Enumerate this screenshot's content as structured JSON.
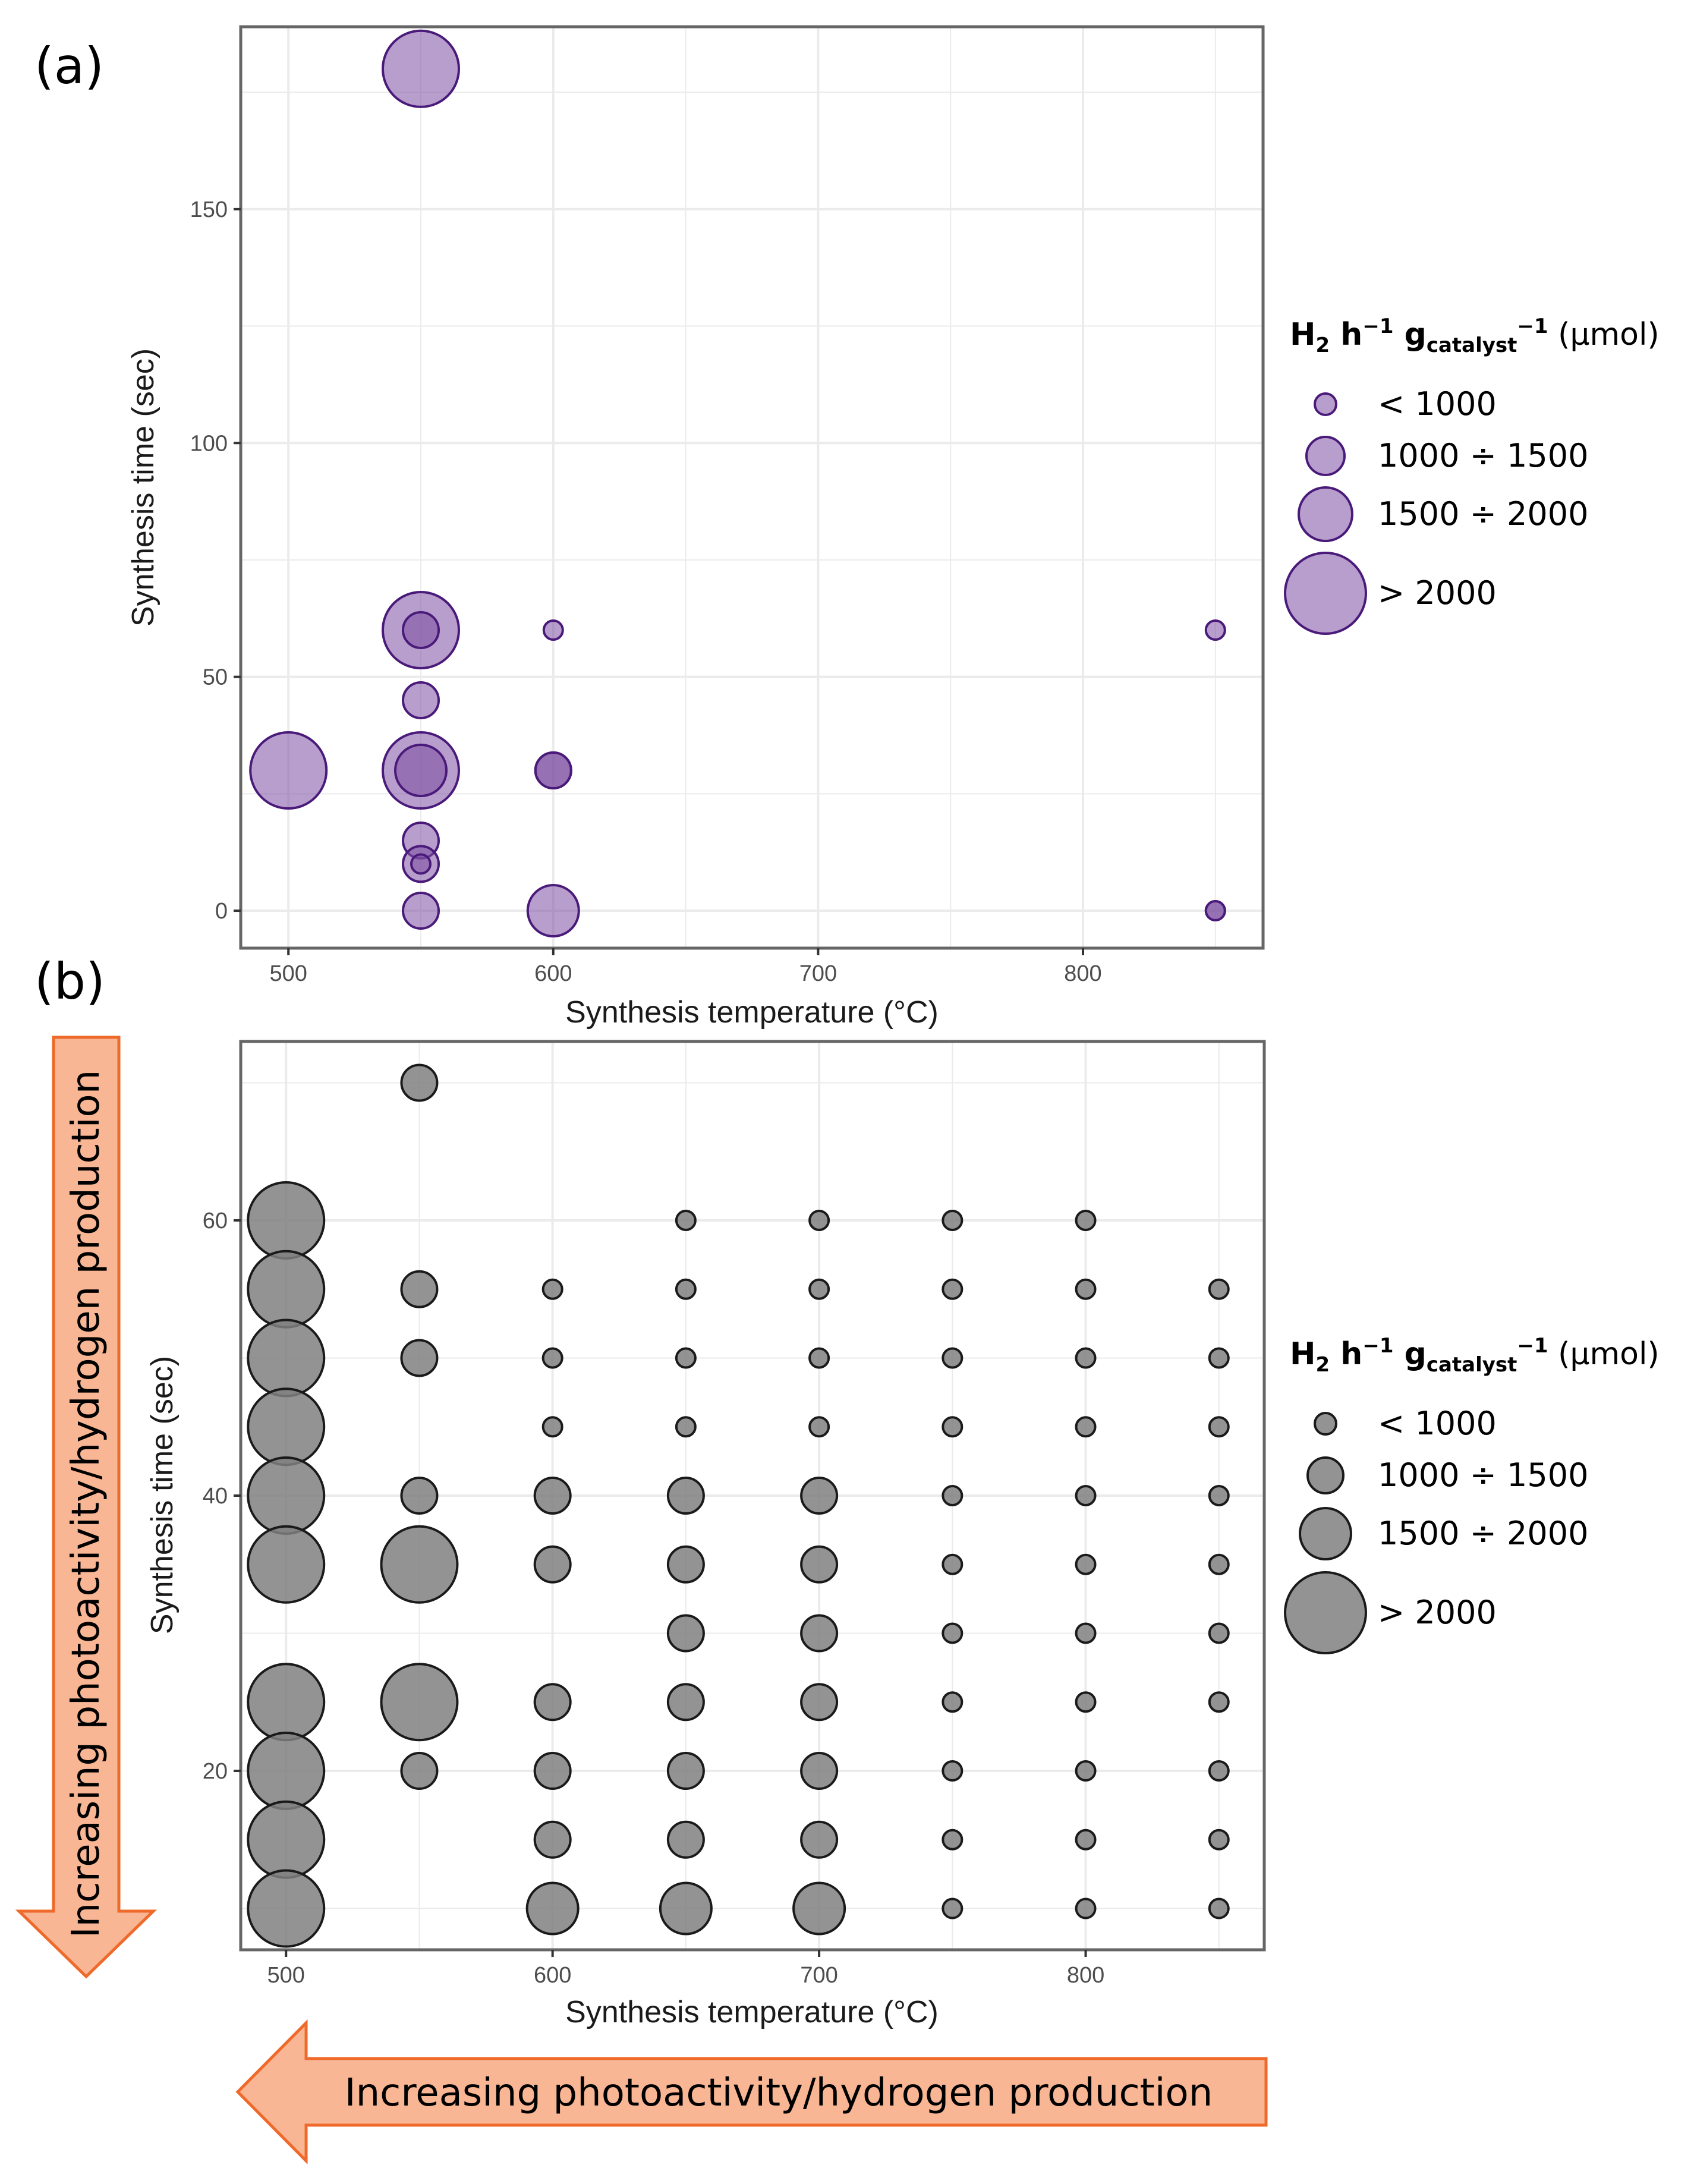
{
  "panels": {
    "a": {
      "label": "(a)"
    },
    "b": {
      "label": "(b)"
    }
  },
  "legend": {
    "title_main": "H",
    "title_sub": "2",
    "title_h": " h",
    "title_sup1": "−1",
    "title_g": " g",
    "title_cat": "catalyst",
    "title_sup2": "−1",
    "title_unit": " (μmol)",
    "items": [
      "< 1000",
      "1000 ÷ 1500",
      "1500 ÷ 2000",
      "> 2000"
    ]
  },
  "arrows": {
    "vertical": "Increasing photoactivity/hydrogen production",
    "horizontal": "Increasing photoactivity/hydrogen production"
  },
  "colors": {
    "purple_fill": "#7b4fa3",
    "purple_stroke": "#4a1a7a",
    "gray_fill": "#808080",
    "gray_stroke": "#1a1a1a",
    "arrow_fill": "#f8b694",
    "arrow_stroke": "#ef6a2a",
    "grid": "#ebebeb",
    "panel_border": "#666666"
  },
  "chart_data": [
    {
      "type": "scatter",
      "subtype": "bubble",
      "panel": "a",
      "title": "",
      "xlabel": "Synthesis temperature (°C)",
      "ylabel": "Synthesis time (sec)",
      "xlim": [
        482,
        868
      ],
      "ylim": [
        -8,
        189
      ],
      "xticks": [
        500,
        600,
        700,
        800
      ],
      "yticks": [
        0,
        50,
        100,
        150
      ],
      "grid": true,
      "legend_position": "right",
      "size_classes": [
        "< 1000",
        "1000 ÷ 1500",
        "1500 ÷ 2000",
        "> 2000"
      ],
      "points": [
        {
          "x": 550,
          "y": 180,
          "size_class": 3
        },
        {
          "x": 550,
          "y": 60,
          "size_class": 3
        },
        {
          "x": 550,
          "y": 60,
          "size_class": 1
        },
        {
          "x": 600,
          "y": 60,
          "size_class": 0
        },
        {
          "x": 850,
          "y": 60,
          "size_class": 0
        },
        {
          "x": 550,
          "y": 45,
          "size_class": 1
        },
        {
          "x": 500,
          "y": 30,
          "size_class": 3
        },
        {
          "x": 550,
          "y": 30,
          "size_class": 3
        },
        {
          "x": 550,
          "y": 30,
          "size_class": 2
        },
        {
          "x": 600,
          "y": 30,
          "size_class": 1
        },
        {
          "x": 600,
          "y": 30,
          "size_class": 1
        },
        {
          "x": 550,
          "y": 15,
          "size_class": 1
        },
        {
          "x": 550,
          "y": 10,
          "size_class": 1
        },
        {
          "x": 550,
          "y": 10,
          "size_class": 0
        },
        {
          "x": 550,
          "y": 0,
          "size_class": 1
        },
        {
          "x": 600,
          "y": 0,
          "size_class": 2
        },
        {
          "x": 850,
          "y": 0,
          "size_class": 0
        },
        {
          "x": 850,
          "y": 0,
          "size_class": 0
        }
      ]
    },
    {
      "type": "scatter",
      "subtype": "bubble",
      "panel": "b",
      "title": "",
      "xlabel": "Synthesis temperature (°C)",
      "ylabel": "Synthesis time (sec)",
      "xlim": [
        483,
        867
      ],
      "ylim": [
        7,
        73
      ],
      "xticks": [
        500,
        600,
        700,
        800
      ],
      "yticks": [
        20,
        40,
        60
      ],
      "grid": true,
      "legend_position": "right",
      "size_classes": [
        "< 1000",
        "1000 ÷ 1500",
        "1500 ÷ 2000",
        "> 2000"
      ],
      "points": [
        {
          "x": 500,
          "y": 60,
          "size_class": 3
        },
        {
          "x": 500,
          "y": 55,
          "size_class": 3
        },
        {
          "x": 500,
          "y": 50,
          "size_class": 3
        },
        {
          "x": 500,
          "y": 45,
          "size_class": 3
        },
        {
          "x": 500,
          "y": 40,
          "size_class": 3
        },
        {
          "x": 500,
          "y": 35,
          "size_class": 3
        },
        {
          "x": 500,
          "y": 25,
          "size_class": 3
        },
        {
          "x": 500,
          "y": 20,
          "size_class": 3
        },
        {
          "x": 500,
          "y": 15,
          "size_class": 3
        },
        {
          "x": 500,
          "y": 10,
          "size_class": 3
        },
        {
          "x": 550,
          "y": 70,
          "size_class": 1
        },
        {
          "x": 550,
          "y": 55,
          "size_class": 1
        },
        {
          "x": 550,
          "y": 50,
          "size_class": 1
        },
        {
          "x": 550,
          "y": 40,
          "size_class": 1
        },
        {
          "x": 550,
          "y": 35,
          "size_class": 3
        },
        {
          "x": 550,
          "y": 25,
          "size_class": 3
        },
        {
          "x": 550,
          "y": 20,
          "size_class": 1
        },
        {
          "x": 600,
          "y": 55,
          "size_class": 0
        },
        {
          "x": 600,
          "y": 50,
          "size_class": 0
        },
        {
          "x": 600,
          "y": 45,
          "size_class": 0
        },
        {
          "x": 600,
          "y": 40,
          "size_class": 1
        },
        {
          "x": 600,
          "y": 35,
          "size_class": 1
        },
        {
          "x": 600,
          "y": 25,
          "size_class": 1
        },
        {
          "x": 600,
          "y": 20,
          "size_class": 1
        },
        {
          "x": 600,
          "y": 15,
          "size_class": 1
        },
        {
          "x": 600,
          "y": 10,
          "size_class": 2
        },
        {
          "x": 650,
          "y": 60,
          "size_class": 0
        },
        {
          "x": 650,
          "y": 55,
          "size_class": 0
        },
        {
          "x": 650,
          "y": 50,
          "size_class": 0
        },
        {
          "x": 650,
          "y": 45,
          "size_class": 0
        },
        {
          "x": 650,
          "y": 40,
          "size_class": 1
        },
        {
          "x": 650,
          "y": 35,
          "size_class": 1
        },
        {
          "x": 650,
          "y": 30,
          "size_class": 1
        },
        {
          "x": 650,
          "y": 25,
          "size_class": 1
        },
        {
          "x": 650,
          "y": 20,
          "size_class": 1
        },
        {
          "x": 650,
          "y": 15,
          "size_class": 1
        },
        {
          "x": 650,
          "y": 10,
          "size_class": 2
        },
        {
          "x": 700,
          "y": 60,
          "size_class": 0
        },
        {
          "x": 700,
          "y": 55,
          "size_class": 0
        },
        {
          "x": 700,
          "y": 50,
          "size_class": 0
        },
        {
          "x": 700,
          "y": 45,
          "size_class": 0
        },
        {
          "x": 700,
          "y": 40,
          "size_class": 1
        },
        {
          "x": 700,
          "y": 35,
          "size_class": 1
        },
        {
          "x": 700,
          "y": 30,
          "size_class": 1
        },
        {
          "x": 700,
          "y": 25,
          "size_class": 1
        },
        {
          "x": 700,
          "y": 20,
          "size_class": 1
        },
        {
          "x": 700,
          "y": 15,
          "size_class": 1
        },
        {
          "x": 700,
          "y": 10,
          "size_class": 2
        },
        {
          "x": 750,
          "y": 60,
          "size_class": 0
        },
        {
          "x": 750,
          "y": 55,
          "size_class": 0
        },
        {
          "x": 750,
          "y": 50,
          "size_class": 0
        },
        {
          "x": 750,
          "y": 45,
          "size_class": 0
        },
        {
          "x": 750,
          "y": 40,
          "size_class": 0
        },
        {
          "x": 750,
          "y": 35,
          "size_class": 0
        },
        {
          "x": 750,
          "y": 30,
          "size_class": 0
        },
        {
          "x": 750,
          "y": 25,
          "size_class": 0
        },
        {
          "x": 750,
          "y": 20,
          "size_class": 0
        },
        {
          "x": 750,
          "y": 15,
          "size_class": 0
        },
        {
          "x": 750,
          "y": 10,
          "size_class": 0
        },
        {
          "x": 800,
          "y": 60,
          "size_class": 0
        },
        {
          "x": 800,
          "y": 55,
          "size_class": 0
        },
        {
          "x": 800,
          "y": 50,
          "size_class": 0
        },
        {
          "x": 800,
          "y": 45,
          "size_class": 0
        },
        {
          "x": 800,
          "y": 40,
          "size_class": 0
        },
        {
          "x": 800,
          "y": 35,
          "size_class": 0
        },
        {
          "x": 800,
          "y": 30,
          "size_class": 0
        },
        {
          "x": 800,
          "y": 25,
          "size_class": 0
        },
        {
          "x": 800,
          "y": 20,
          "size_class": 0
        },
        {
          "x": 800,
          "y": 15,
          "size_class": 0
        },
        {
          "x": 800,
          "y": 10,
          "size_class": 0
        },
        {
          "x": 850,
          "y": 55,
          "size_class": 0
        },
        {
          "x": 850,
          "y": 50,
          "size_class": 0
        },
        {
          "x": 850,
          "y": 45,
          "size_class": 0
        },
        {
          "x": 850,
          "y": 40,
          "size_class": 0
        },
        {
          "x": 850,
          "y": 35,
          "size_class": 0
        },
        {
          "x": 850,
          "y": 30,
          "size_class": 0
        },
        {
          "x": 850,
          "y": 25,
          "size_class": 0
        },
        {
          "x": 850,
          "y": 20,
          "size_class": 0
        },
        {
          "x": 850,
          "y": 15,
          "size_class": 0
        },
        {
          "x": 850,
          "y": 10,
          "size_class": 0
        }
      ]
    }
  ]
}
